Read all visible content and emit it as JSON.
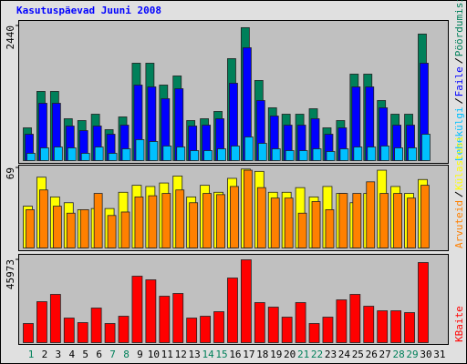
{
  "chart_data": {
    "type": "bar",
    "title": "Kasutuspäevad Juuni 2008",
    "categories": [
      "1",
      "2",
      "3",
      "4",
      "5",
      "6",
      "7",
      "8",
      "9",
      "10",
      "11",
      "12",
      "13",
      "14",
      "15",
      "16",
      "17",
      "18",
      "19",
      "20",
      "21",
      "22",
      "23",
      "24",
      "25",
      "26",
      "27",
      "28",
      "29",
      "30",
      "31"
    ],
    "category_colors": [
      "#00805a",
      "#000000",
      "#000000",
      "#000000",
      "#000000",
      "#000000",
      "#00805a",
      "#00805a",
      "#000000",
      "#000000",
      "#000000",
      "#000000",
      "#000000",
      "#00805a",
      "#00805a",
      "#000000",
      "#000000",
      "#000000",
      "#000000",
      "#000000",
      "#00805a",
      "#00805a",
      "#000000",
      "#000000",
      "#000000",
      "#000000",
      "#000000",
      "#00805a",
      "#00805a",
      "#000000",
      "#000000"
    ],
    "panels": [
      {
        "ylim": [
          0,
          2440
        ],
        "yticks": [
          2440
        ],
        "series": [
          {
            "name": "Pöördumisi",
            "color": "#00805a",
            "values": [
              594,
              1254,
              1254,
              759,
              726,
              841,
              561,
              792,
              1765,
              1765,
              1369,
              1534,
              726,
              759,
              891,
              1848,
              2409,
              1452,
              957,
              841,
              841,
              940,
              594,
              726,
              1567,
              1567,
              1089,
              841,
              841,
              2293,
              null
            ]
          },
          {
            "name": "Faile",
            "color": "#0000ff",
            "values": [
              478,
              1039,
              1039,
              627,
              544,
              627,
              478,
              643,
              1369,
              1336,
              1122,
              1303,
              627,
              643,
              759,
              1402,
              2046,
              1089,
              808,
              643,
              643,
              759,
              478,
              594,
              1336,
              1336,
              957,
              643,
              643,
              1765,
              null
            ]
          },
          {
            "name": "Lehekülgi",
            "color": "#00c0ff",
            "values": [
              132,
              231,
              247,
              231,
              132,
              247,
              132,
              214,
              380,
              346,
              264,
              247,
              181,
              181,
              214,
              264,
              429,
              313,
              214,
              181,
              181,
              214,
              165,
              214,
              247,
              247,
              264,
              231,
              231,
              478,
              null
            ]
          }
        ]
      },
      {
        "ylim": [
          0,
          69
        ],
        "yticks": [
          69
        ],
        "series": [
          {
            "name": "Külastusi",
            "color": "#ffff00",
            "values": [
              36,
              61,
              44,
              39,
              33,
              34,
              34,
              48,
              54,
              53,
              56,
              62,
              44,
              54,
              48,
              60,
              68,
              66,
              48,
              48,
              52,
              44,
              53,
              47,
              39,
              47,
              67,
              53,
              47,
              59,
              null
            ]
          },
          {
            "name": "Arvuteid",
            "color": "#ff8000",
            "values": [
              33,
              50,
              36,
              30,
              33,
              47,
              28,
              31,
              44,
              45,
              47,
              50,
              39,
              47,
              46,
              53,
              67,
              52,
              43,
              43,
              30,
              40,
              33,
              47,
              47,
              57,
              47,
              47,
              43,
              54,
              null
            ]
          }
        ]
      },
      {
        "ylim": [
          0,
          45973
        ],
        "yticks": [
          45973
        ],
        "series": [
          {
            "name": "KBaite",
            "color": "#ff0000",
            "values": [
              10609,
              22736,
              26777,
              13640,
              11114,
              19197,
              10609,
              14651,
              36881,
              34858,
              25765,
              27281,
              13640,
              14651,
              17176,
              35869,
              45973,
              22229,
              19702,
              14145,
              22229,
              10609,
              14145,
              23744,
              26777,
              20208,
              17682,
              17682,
              16671,
              44458,
              null
            ]
          }
        ]
      }
    ]
  }
}
